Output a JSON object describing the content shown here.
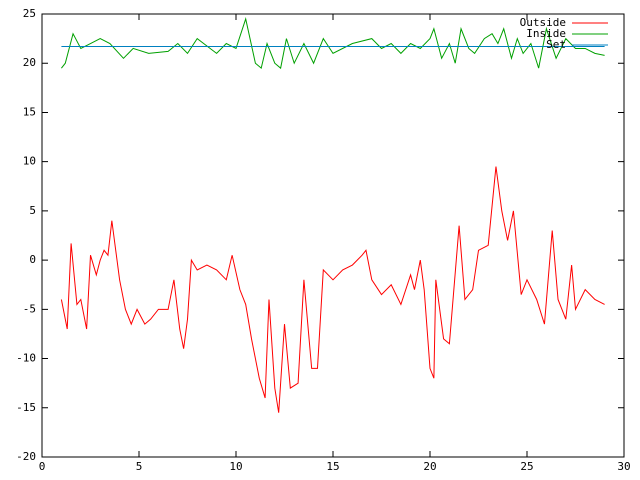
{
  "chart_data": {
    "type": "line",
    "xlim": [
      0,
      30
    ],
    "xticks": [
      0,
      5,
      10,
      15,
      20,
      25,
      30
    ],
    "ylim": [
      -20,
      25
    ],
    "yticks": [
      -20,
      -15,
      -10,
      -5,
      0,
      5,
      10,
      15,
      20,
      25
    ],
    "legend": "top-right",
    "grid": false,
    "series": [
      {
        "name": "Outside",
        "color": "#ff0000",
        "x": [
          1,
          1.3,
          1.5,
          1.8,
          2,
          2.3,
          2.5,
          2.8,
          3,
          3.2,
          3.4,
          3.6,
          3.8,
          4,
          4.3,
          4.6,
          4.9,
          5.3,
          5.6,
          6,
          6.5,
          6.8,
          7.1,
          7.3,
          7.5,
          7.7,
          8,
          8.5,
          9,
          9.5,
          9.8,
          10.2,
          10.5,
          10.8,
          11.2,
          11.5,
          11.7,
          12,
          12.2,
          12.5,
          12.8,
          13.2,
          13.5,
          13.9,
          14.2,
          14.5,
          15,
          15.5,
          16,
          16.5,
          16.7,
          17,
          17.5,
          18,
          18.5,
          19,
          19.2,
          19.5,
          19.7,
          20,
          20.2,
          20.3,
          20.7,
          21,
          21.5,
          21.8,
          22.2,
          22.5,
          23,
          23.4,
          23.7,
          24,
          24.3,
          24.7,
          25,
          25.5,
          25.9,
          26.3,
          26.6,
          27,
          27.3,
          27.5,
          28,
          28.5,
          29
        ],
        "values": [
          -4,
          -7,
          1.7,
          -4.5,
          -4,
          -7,
          0.5,
          -1.5,
          0,
          1,
          0.5,
          4,
          1,
          -2,
          -5,
          -6.5,
          -5,
          -6.5,
          -6,
          -5,
          -5,
          -2,
          -7,
          -9,
          -6,
          0,
          -1,
          -0.5,
          -1,
          -2,
          0.5,
          -3,
          -4.5,
          -8,
          -12,
          -14,
          -4,
          -13,
          -15.5,
          -6.5,
          -13,
          -12.5,
          -2,
          -11,
          -11,
          -1,
          -2,
          -1,
          -0.5,
          0.5,
          1,
          -2,
          -3.5,
          -2.5,
          -4.5,
          -1.5,
          -3,
          0,
          -3,
          -11,
          -12,
          -2,
          -8,
          -8.5,
          3.5,
          -4,
          -3,
          1,
          1.5,
          9.5,
          5,
          2,
          5,
          -3.5,
          -2,
          -4,
          -6.5,
          3,
          -4,
          -6,
          -0.5,
          -5,
          -3,
          -4,
          -4.5
        ]
      },
      {
        "name": "Inside",
        "color": "#00a000",
        "x": [
          1,
          1.2,
          1.6,
          2,
          2.5,
          3,
          3.5,
          4.2,
          4.7,
          5.5,
          6.5,
          7,
          7.5,
          8,
          9,
          9.5,
          10,
          10.5,
          11,
          11.3,
          11.6,
          12,
          12.3,
          12.6,
          13,
          13.5,
          14,
          14.5,
          15,
          16,
          17,
          17.5,
          18,
          18.5,
          19,
          19.5,
          20,
          20.2,
          20.6,
          21,
          21.3,
          21.6,
          22,
          22.3,
          22.8,
          23.2,
          23.5,
          23.8,
          24.2,
          24.5,
          24.8,
          25.2,
          25.6,
          26,
          26.5,
          27,
          27.5,
          28,
          28.5,
          29
        ],
        "values": [
          19.5,
          20,
          23,
          21.5,
          22,
          22.5,
          22,
          20.5,
          21.5,
          21,
          21.2,
          22,
          21,
          22.5,
          21,
          22,
          21.5,
          24.5,
          20,
          19.5,
          22,
          20,
          19.5,
          22.5,
          20,
          22,
          20,
          22.5,
          21,
          22,
          22.5,
          21.5,
          22,
          21,
          22,
          21.5,
          22.5,
          23.5,
          20.5,
          22,
          20,
          23.5,
          21.5,
          21,
          22.5,
          23,
          22,
          23.5,
          20.5,
          22.5,
          21,
          22,
          19.5,
          23.5,
          20.5,
          22.5,
          21.5,
          21.5,
          21,
          20.8
        ]
      },
      {
        "name": "Set",
        "color": "#0080c0",
        "x": [
          1,
          29
        ],
        "values": [
          21.7,
          21.7
        ]
      }
    ]
  }
}
